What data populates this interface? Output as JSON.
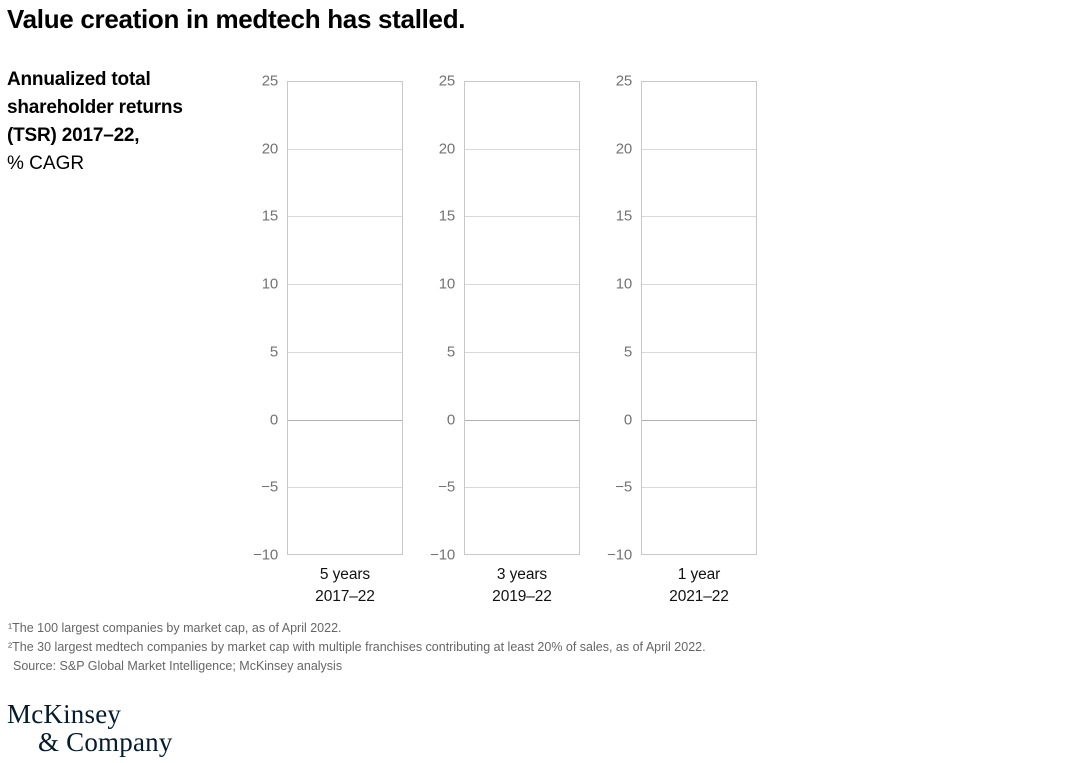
{
  "header": {
    "title": "Value creation in medtech has stalled."
  },
  "y_axis_title": {
    "bold_lines": [
      "Annualized total",
      "shareholder returns",
      "(TSR) 2017–22,"
    ],
    "regular_line": "% CAGR"
  },
  "chart_data": {
    "type": "bar",
    "title": "Annualized total shareholder returns (TSR) 2017–22, % CAGR",
    "categories": [
      "5 years 2017–22",
      "3 years 2019–22",
      "1 year 2021–22"
    ],
    "series": [],
    "ylim": [
      -10,
      25
    ],
    "ytick_step": 5,
    "grid": true,
    "legend": "none",
    "panels": [
      {
        "label_line1": "5 years",
        "label_line2": "2017–22"
      },
      {
        "label_line1": "3 years",
        "label_line2": "2019–22"
      },
      {
        "label_line1": "1 year",
        "label_line2": "2021–22"
      }
    ],
    "yticks": [
      {
        "value": 25,
        "label": "25"
      },
      {
        "value": 20,
        "label": "20"
      },
      {
        "value": 15,
        "label": "15"
      },
      {
        "value": 10,
        "label": "10"
      },
      {
        "value": 5,
        "label": "5"
      },
      {
        "value": 0,
        "label": "0"
      },
      {
        "value": -5,
        "label": "−5"
      },
      {
        "value": -10,
        "label": "−10"
      }
    ]
  },
  "footnotes": [
    "¹The 100 largest companies by market cap, as of April 2022.",
    "²The 30 largest medtech companies by market cap with multiple franchises contributing at least 20% of sales, as of April 2022.",
    "Source: S&P Global Market Intelligence; McKinsey analysis"
  ],
  "logo": {
    "line1": "McKinsey",
    "line2": "& Company"
  },
  "colors": {
    "title_text": "#000000",
    "tick_text": "#737373",
    "category_text": "#111111",
    "footnote_text": "#666666",
    "panel_border": "#c8c8c8",
    "gridline": "#d9d9d9",
    "zero_line": "#b0b0b0",
    "logo_navy": "#051c2c",
    "background": "#ffffff"
  }
}
